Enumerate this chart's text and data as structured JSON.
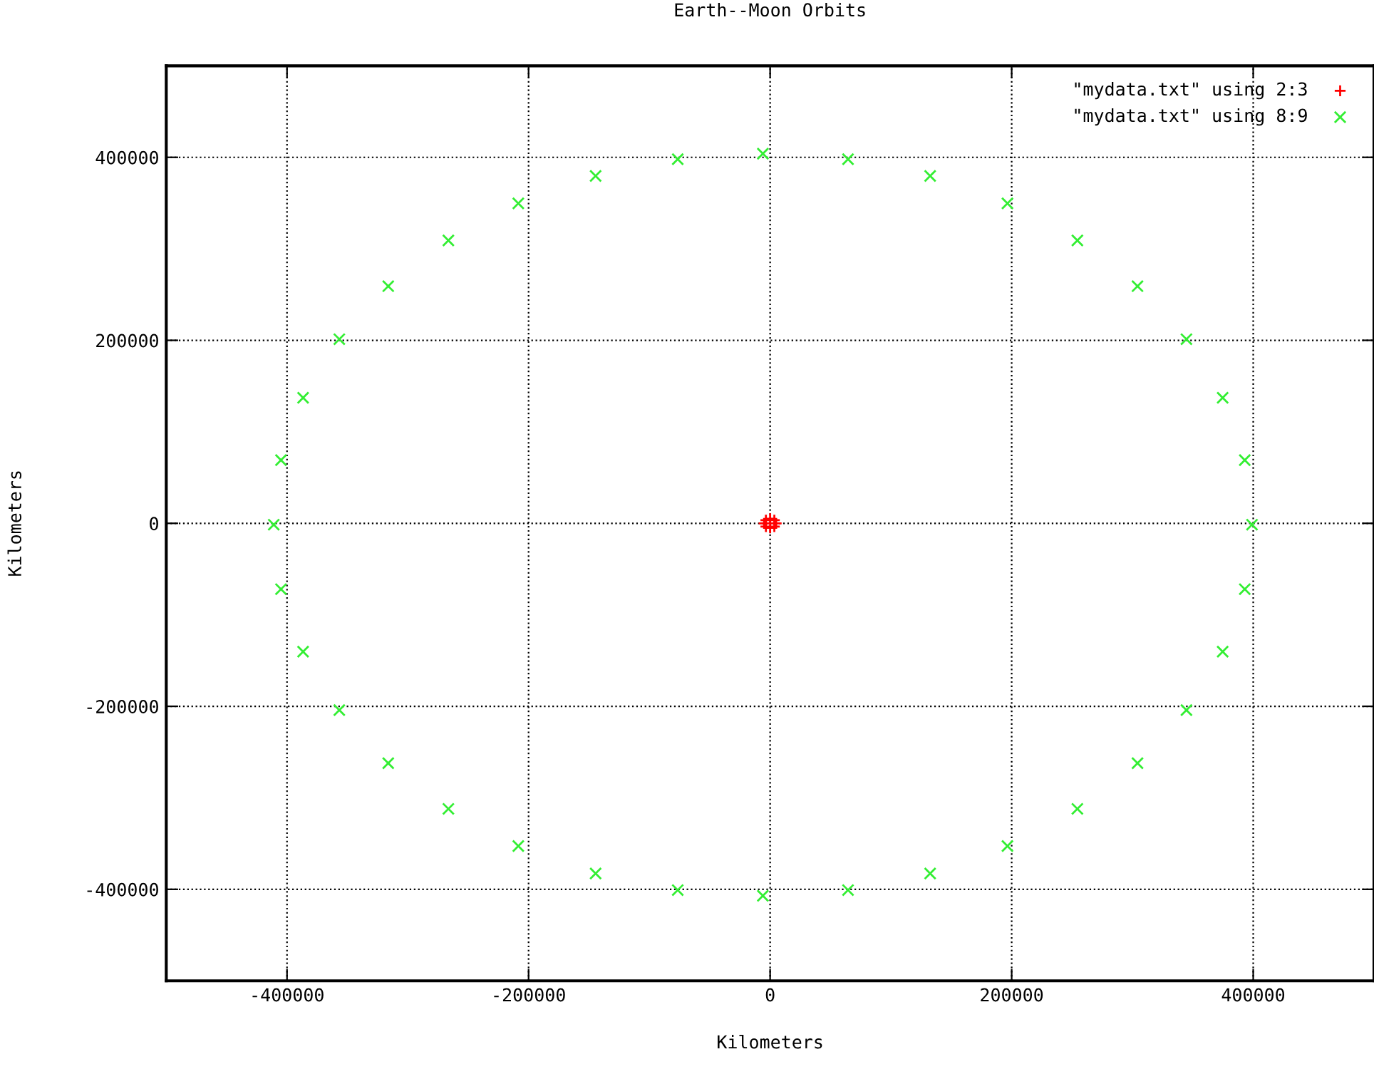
{
  "chart_data": {
    "type": "scatter",
    "title": "Earth--Moon Orbits",
    "xlabel": "Kilometers",
    "ylabel": "Kilometers",
    "xlim": [
      -500000,
      500000
    ],
    "ylim": [
      -500000,
      500000
    ],
    "xticks": [
      -400000,
      -200000,
      0,
      200000,
      400000
    ],
    "yticks": [
      -400000,
      -200000,
      0,
      200000,
      400000
    ],
    "grid": true,
    "legend": "top right",
    "series": [
      {
        "name": "\"mydata.txt\" using 2:3",
        "color": "#ff0000",
        "marker": "cross",
        "x": [
          5000,
          3500,
          0,
          -3500,
          -5000,
          -3500,
          0,
          3500
        ],
        "values": [
          0,
          3500,
          5000,
          3500,
          0,
          -3500,
          -5000,
          -3500
        ]
      },
      {
        "name": "\"mydata.txt\" using 8:9",
        "color": "#33ee33",
        "marker": "x",
        "x": [
          399000,
          393000,
          374700,
          344700,
          304200,
          254400,
          196500,
          132500,
          64500,
          -6000,
          -76500,
          -144500,
          -208500,
          -266400,
          -316200,
          -356700,
          -386700,
          -405000,
          -411000,
          -405000,
          -386700,
          -356700,
          -316200,
          -266400,
          -208500,
          -144500,
          -76500,
          -6000,
          64500,
          132500,
          196500,
          254400,
          304200,
          344700,
          374700,
          393000
        ],
        "values": [
          -1500,
          69000,
          137200,
          201200,
          259200,
          309100,
          349700,
          379700,
          397900,
          404000,
          397900,
          379700,
          349700,
          309100,
          259200,
          201200,
          137200,
          69000,
          -1500,
          -72000,
          -140200,
          -204200,
          -262200,
          -312100,
          -352700,
          -382700,
          -400900,
          -407000,
          -400900,
          -382700,
          -352700,
          -312100,
          -262200,
          -204200,
          -140200,
          -72000
        ]
      }
    ]
  }
}
